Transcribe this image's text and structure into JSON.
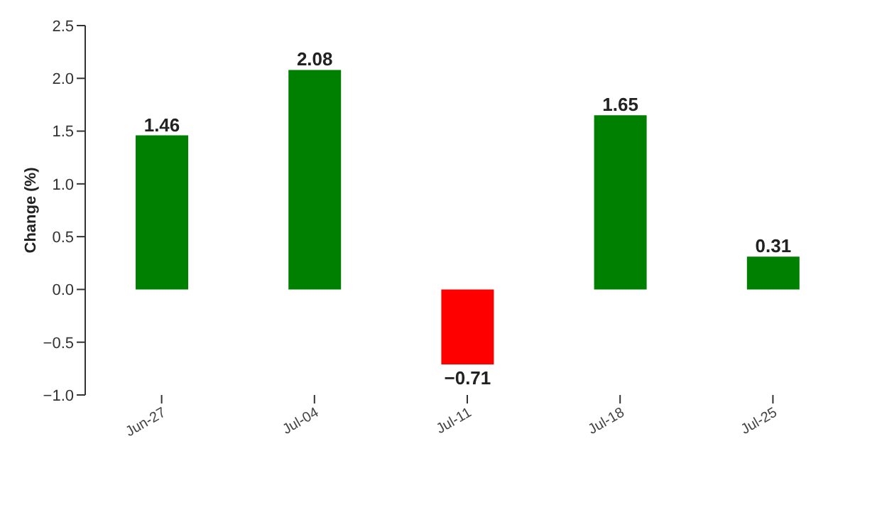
{
  "chart_data": {
    "type": "bar",
    "ylabel": "Change (%)",
    "categories": [
      "Jun-27",
      "Jul-04",
      "Jul-11",
      "Jul-18",
      "Jul-25"
    ],
    "values": [
      1.46,
      2.08,
      -0.71,
      1.65,
      0.31
    ],
    "colors": [
      "#008000",
      "#008000",
      "#ff0000",
      "#008000",
      "#008000"
    ],
    "value_labels": [
      "1.46",
      "2.08",
      "−0.71",
      "1.65",
      "0.31"
    ],
    "ylim": [
      -1,
      2.5
    ],
    "yticks": [
      {
        "value": -1,
        "label": "−1.0"
      },
      {
        "value": -0.5,
        "label": "−0.5"
      },
      {
        "value": 0,
        "label": "0.0"
      },
      0.5,
      {
        "value": 1,
        "label": "1.0"
      },
      1.5,
      {
        "value": 2,
        "label": "2.0"
      },
      2.5
    ],
    "grid": false,
    "legend": false
  }
}
